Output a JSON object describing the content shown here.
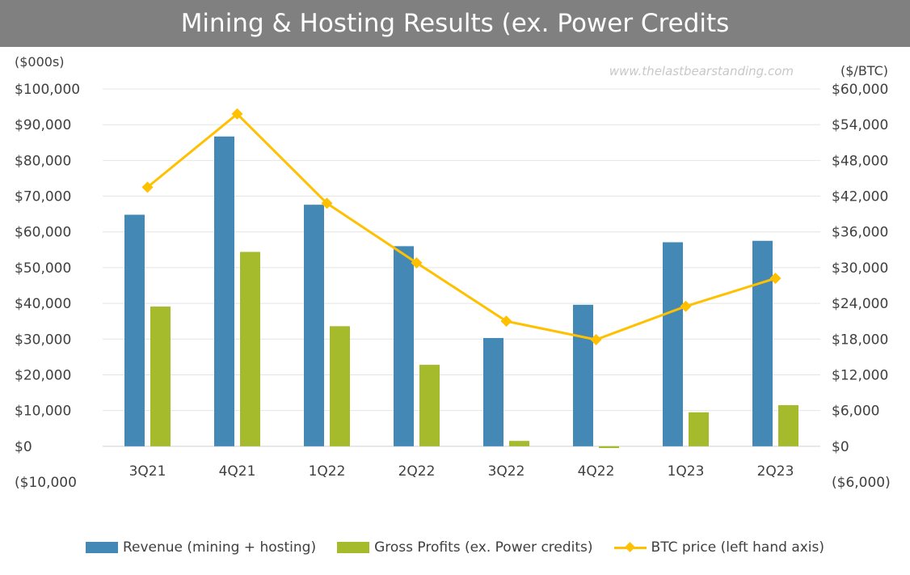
{
  "title": "Mining & Hosting Results (ex. Power Credits",
  "watermark": "www.thelastbearstanding.com",
  "chart_data": {
    "type": "bar",
    "categories": [
      "3Q21",
      "4Q21",
      "1Q22",
      "2Q22",
      "3Q22",
      "4Q22",
      "1Q23",
      "2Q23"
    ],
    "series": [
      {
        "name": "Revenue (mining + hosting)",
        "type": "bar",
        "axis": "left",
        "color": "#4489b6",
        "values": [
          64800,
          86700,
          67600,
          56000,
          30300,
          39600,
          57100,
          57500
        ]
      },
      {
        "name": "Gross Profits (ex. Power credits)",
        "type": "bar",
        "axis": "left",
        "color": "#a6bb2b",
        "values": [
          39100,
          54400,
          33600,
          22800,
          1500,
          -500,
          9500,
          11500
        ]
      },
      {
        "name": "BTC price (left hand axis)",
        "type": "line",
        "axis": "right",
        "color": "#ffc000",
        "values": [
          43500,
          55800,
          40800,
          30800,
          21000,
          17900,
          23500,
          28200
        ]
      }
    ],
    "left_axis": {
      "unit_label": "($000s)",
      "ylim": [
        -10000,
        100000
      ],
      "ticks": [
        {
          "value": 100000,
          "label": "$100,000"
        },
        {
          "value": 90000,
          "label": "$90,000"
        },
        {
          "value": 80000,
          "label": "$80,000"
        },
        {
          "value": 70000,
          "label": "$70,000"
        },
        {
          "value": 60000,
          "label": "$60,000"
        },
        {
          "value": 50000,
          "label": "$50,000"
        },
        {
          "value": 40000,
          "label": "$40,000"
        },
        {
          "value": 30000,
          "label": "$30,000"
        },
        {
          "value": 20000,
          "label": "$20,000"
        },
        {
          "value": 10000,
          "label": "$10,000"
        },
        {
          "value": 0,
          "label": "$0"
        },
        {
          "value": -10000,
          "label": "($10,000"
        }
      ]
    },
    "right_axis": {
      "unit_label": "($/BTC)",
      "ylim": [
        -6000,
        60000
      ],
      "ticks": [
        {
          "value": 60000,
          "label": "$60,000"
        },
        {
          "value": 54000,
          "label": "$54,000"
        },
        {
          "value": 48000,
          "label": "$48,000"
        },
        {
          "value": 42000,
          "label": "$42,000"
        },
        {
          "value": 36000,
          "label": "$36,000"
        },
        {
          "value": 30000,
          "label": "$30,000"
        },
        {
          "value": 24000,
          "label": "$24,000"
        },
        {
          "value": 18000,
          "label": "$18,000"
        },
        {
          "value": 12000,
          "label": "$12,000"
        },
        {
          "value": 6000,
          "label": "$6,000"
        },
        {
          "value": 0,
          "label": "$0"
        },
        {
          "value": -6000,
          "label": "($6,000)"
        }
      ]
    },
    "grid": true,
    "legend_position": "bottom"
  }
}
